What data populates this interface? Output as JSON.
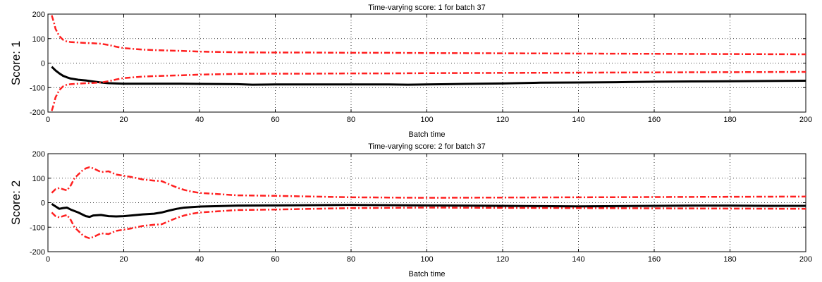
{
  "chart_data": [
    {
      "type": "line",
      "title": "Time-varying score: 1 for batch 37",
      "xlabel": "Batch time",
      "ylabel": "Score: 1",
      "xlim": [
        0,
        200
      ],
      "ylim": [
        -200,
        200
      ],
      "xticks": [
        0,
        20,
        40,
        60,
        80,
        100,
        120,
        140,
        160,
        180,
        200
      ],
      "yticks": [
        -200,
        -100,
        0,
        100,
        200
      ],
      "grid": true,
      "series": [
        {
          "role": "score",
          "color": "#000000",
          "style": "solid",
          "x": [
            1,
            2,
            3,
            4,
            5,
            6,
            8,
            10,
            12,
            14,
            16,
            18,
            20,
            25,
            30,
            35,
            40,
            50,
            54,
            60,
            70,
            80,
            90,
            95,
            100,
            110,
            120,
            130,
            140,
            150,
            160,
            170,
            180,
            190,
            200
          ],
          "y": [
            -15,
            -30,
            -42,
            -52,
            -58,
            -63,
            -68,
            -71,
            -75,
            -79,
            -82,
            -83,
            -84,
            -84,
            -84,
            -84,
            -85,
            -86,
            -88,
            -87,
            -87,
            -87,
            -87,
            -88,
            -87,
            -85,
            -83,
            -80,
            -79,
            -78,
            -76,
            -75,
            -74,
            -73,
            -72
          ]
        },
        {
          "role": "upper-limit",
          "color": "#ff2020",
          "style": "dashdot",
          "x": [
            1,
            1.5,
            2,
            3,
            4,
            5,
            6,
            8,
            10,
            12,
            14,
            16,
            18,
            20,
            25,
            30,
            35,
            40,
            50,
            60,
            70,
            80,
            90,
            100,
            120,
            140,
            160,
            180,
            200
          ],
          "y": [
            195,
            170,
            140,
            110,
            95,
            88,
            86,
            84,
            82,
            81,
            79,
            74,
            67,
            61,
            55,
            52,
            50,
            47,
            44,
            43,
            43,
            42,
            42,
            41,
            40,
            39,
            38,
            37,
            36
          ]
        },
        {
          "role": "lower-limit",
          "color": "#ff2020",
          "style": "dashdot",
          "x": [
            1,
            1.5,
            2,
            3,
            4,
            5,
            6,
            8,
            10,
            12,
            14,
            16,
            18,
            20,
            25,
            30,
            35,
            40,
            50,
            60,
            70,
            80,
            90,
            100,
            120,
            140,
            160,
            180,
            200
          ],
          "y": [
            -195,
            -170,
            -140,
            -110,
            -95,
            -88,
            -86,
            -84,
            -82,
            -81,
            -79,
            -74,
            -67,
            -61,
            -55,
            -52,
            -50,
            -47,
            -44,
            -43,
            -43,
            -42,
            -42,
            -41,
            -40,
            -39,
            -38,
            -37,
            -36
          ]
        }
      ]
    },
    {
      "type": "line",
      "title": "Time-varying score: 2 for batch 37",
      "xlabel": "Batch time",
      "ylabel": "Score: 2",
      "xlim": [
        0,
        200
      ],
      "ylim": [
        -200,
        200
      ],
      "xticks": [
        0,
        20,
        40,
        60,
        80,
        100,
        120,
        140,
        160,
        180,
        200
      ],
      "yticks": [
        -200,
        -100,
        0,
        100,
        200
      ],
      "grid": true,
      "series": [
        {
          "role": "score",
          "color": "#000000",
          "style": "solid",
          "x": [
            1,
            2,
            3,
            4,
            5,
            6,
            8,
            10,
            11,
            12,
            14,
            16,
            18,
            20,
            22,
            25,
            28,
            30,
            32,
            34,
            36,
            38,
            40,
            45,
            50,
            60,
            70,
            80,
            90,
            100,
            110,
            120,
            130,
            140,
            150,
            160,
            170,
            180,
            190,
            200
          ],
          "y": [
            -5,
            -15,
            -25,
            -22,
            -20,
            -28,
            -40,
            -55,
            -58,
            -52,
            -50,
            -55,
            -56,
            -55,
            -52,
            -48,
            -45,
            -40,
            -32,
            -25,
            -20,
            -18,
            -16,
            -14,
            -12,
            -11,
            -10,
            -9,
            -10,
            -11,
            -12,
            -13,
            -14,
            -15,
            -14,
            -13,
            -12,
            -12,
            -13,
            -13
          ]
        },
        {
          "role": "upper-limit",
          "color": "#ff2020",
          "style": "dashdot",
          "x": [
            1,
            2,
            3,
            4,
            5,
            6,
            7,
            8,
            9,
            10,
            11,
            12,
            14,
            16,
            18,
            20,
            22,
            25,
            28,
            30,
            32,
            34,
            36,
            38,
            40,
            45,
            50,
            60,
            70,
            80,
            90,
            100,
            120,
            140,
            160,
            180,
            200
          ],
          "y": [
            40,
            55,
            60,
            55,
            50,
            70,
            100,
            115,
            130,
            140,
            145,
            140,
            125,
            128,
            115,
            110,
            105,
            95,
            90,
            88,
            75,
            62,
            52,
            45,
            40,
            35,
            30,
            28,
            25,
            22,
            21,
            20,
            21,
            22,
            23,
            24,
            25
          ]
        },
        {
          "role": "lower-limit",
          "color": "#ff2020",
          "style": "dashdot",
          "x": [
            1,
            2,
            3,
            4,
            5,
            6,
            7,
            8,
            9,
            10,
            11,
            12,
            14,
            16,
            18,
            20,
            22,
            25,
            28,
            30,
            32,
            34,
            36,
            38,
            40,
            45,
            50,
            60,
            70,
            80,
            90,
            100,
            120,
            140,
            160,
            180,
            200
          ],
          "y": [
            -40,
            -55,
            -60,
            -55,
            -50,
            -70,
            -100,
            -115,
            -130,
            -140,
            -145,
            -140,
            -125,
            -128,
            -115,
            -110,
            -105,
            -95,
            -90,
            -88,
            -75,
            -62,
            -52,
            -45,
            -40,
            -35,
            -30,
            -28,
            -25,
            -22,
            -21,
            -20,
            -21,
            -22,
            -23,
            -24,
            -25
          ]
        }
      ]
    }
  ]
}
